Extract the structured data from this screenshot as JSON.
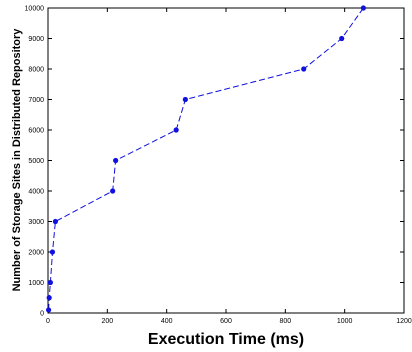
{
  "chart_data": {
    "type": "line",
    "title": "",
    "xlabel": "Execution Time (ms)",
    "ylabel": "Number of Storage Sites in Distributed Repository",
    "xlim": [
      0,
      1200
    ],
    "ylim": [
      0,
      10000
    ],
    "x_ticks": [
      "0",
      "200",
      "400",
      "600",
      "800",
      "1000",
      "1200"
    ],
    "y_ticks": [
      "0",
      "1000",
      "2000",
      "3000",
      "4000",
      "5000",
      "6000",
      "7000",
      "8000",
      "9000",
      "10000"
    ],
    "grid": false,
    "line_style": "dashed",
    "marker": "circle",
    "series": [
      {
        "color": "#1010e0",
        "points": [
          {
            "x": 2,
            "y": 100
          },
          {
            "x": 4,
            "y": 500
          },
          {
            "x": 8,
            "y": 1000
          },
          {
            "x": 15,
            "y": 2000
          },
          {
            "x": 25,
            "y": 3000
          },
          {
            "x": 218,
            "y": 4000
          },
          {
            "x": 228,
            "y": 5000
          },
          {
            "x": 432,
            "y": 6000
          },
          {
            "x": 463,
            "y": 7000
          },
          {
            "x": 862,
            "y": 8000
          },
          {
            "x": 990,
            "y": 9000
          },
          {
            "x": 1063,
            "y": 10000
          }
        ]
      }
    ]
  }
}
